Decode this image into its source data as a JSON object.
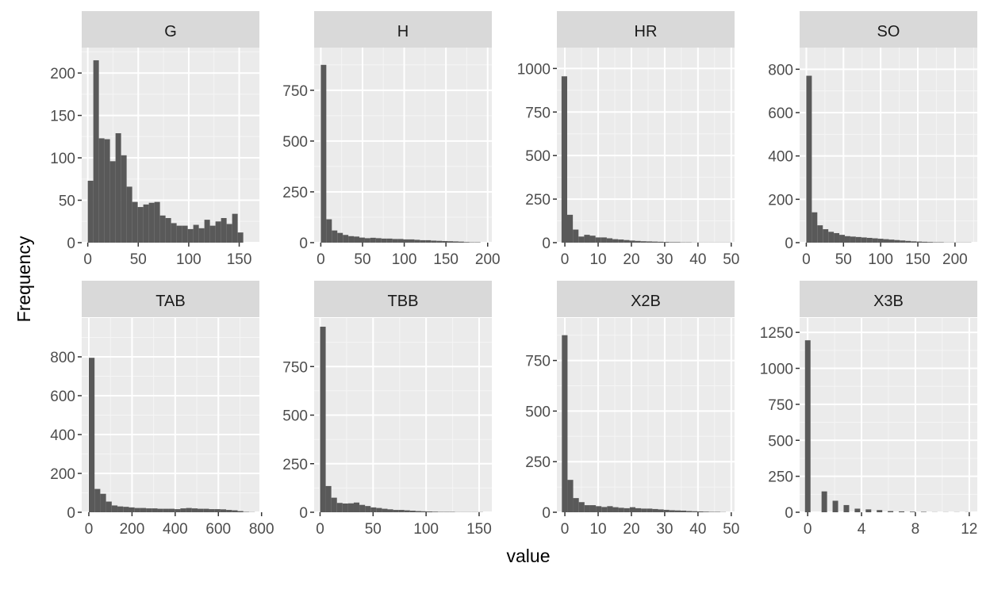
{
  "colors": {
    "panel_bg": "#ebebeb",
    "grid_major": "#ffffff",
    "grid_minor": "#f5f5f5",
    "strip_bg": "#d9d9d9",
    "bar_fill": "#595959",
    "tick_color": "#333333"
  },
  "chart_data": {
    "type": "bar",
    "layout": "facet-grid 2 rows x 4 columns, free scales",
    "xlabel": "value",
    "ylabel": "Frequency",
    "grid": true,
    "legend": "none",
    "panels": [
      {
        "name": "G",
        "xlim": [
          -6,
          170
        ],
        "ylim": [
          0,
          230
        ],
        "xticks": [
          0,
          50,
          100,
          150
        ],
        "yticks": [
          0,
          50,
          100,
          150,
          200
        ],
        "x0": 0,
        "binwidth": 5.5,
        "values": [
          73,
          215,
          123,
          122,
          96,
          129,
          103,
          66,
          48,
          42,
          45,
          47,
          48,
          32,
          29,
          23,
          20,
          20,
          16,
          21,
          17,
          27,
          20,
          25,
          29,
          22,
          34,
          12
        ]
      },
      {
        "name": "H",
        "xlim": [
          -8,
          205
        ],
        "ylim": [
          0,
          960
        ],
        "xticks": [
          0,
          50,
          100,
          150,
          200
        ],
        "yticks": [
          0,
          250,
          500,
          750
        ],
        "x0": 0,
        "binwidth": 6.6,
        "values": [
          875,
          115,
          60,
          48,
          38,
          32,
          30,
          25,
          22,
          24,
          22,
          20,
          20,
          18,
          18,
          16,
          16,
          14,
          12,
          12,
          10,
          9,
          8,
          7,
          6,
          5,
          3,
          2,
          2
        ]
      },
      {
        "name": "HR",
        "xlim": [
          -2.4,
          51
        ],
        "ylim": [
          0,
          1120
        ],
        "xticks": [
          0,
          10,
          20,
          30,
          40,
          50
        ],
        "yticks": [
          0,
          250,
          500,
          750,
          1000
        ],
        "x0": -1,
        "binwidth": 1.7,
        "values": [
          955,
          160,
          75,
          35,
          45,
          40,
          30,
          30,
          25,
          20,
          18,
          15,
          12,
          10,
          8,
          7,
          6,
          5,
          4,
          3,
          3,
          2,
          2,
          1,
          1,
          1,
          1,
          1,
          1,
          1
        ]
      },
      {
        "name": "SO",
        "xlim": [
          -9,
          230
        ],
        "ylim": [
          0,
          900
        ],
        "xticks": [
          0,
          50,
          100,
          150,
          200
        ],
        "yticks": [
          0,
          200,
          400,
          600,
          800
        ],
        "x0": 0,
        "binwidth": 7.4,
        "values": [
          770,
          140,
          80,
          62,
          50,
          44,
          36,
          30,
          28,
          26,
          24,
          22,
          20,
          18,
          16,
          14,
          12,
          10,
          8,
          6,
          5,
          4,
          3,
          2,
          2,
          1,
          1,
          1,
          1,
          1
        ]
      },
      {
        "name": "TAB",
        "xlim": [
          -33,
          790
        ],
        "ylim": [
          0,
          1000
        ],
        "xticks": [
          0,
          200,
          400,
          600,
          800
        ],
        "yticks": [
          0,
          200,
          400,
          600,
          800
        ],
        "x0": 0,
        "binwidth": 26.5,
        "values": [
          795,
          120,
          95,
          55,
          35,
          30,
          28,
          25,
          22,
          22,
          20,
          20,
          18,
          18,
          18,
          16,
          20,
          22,
          20,
          18,
          18,
          16,
          16,
          15,
          12,
          10,
          6,
          2,
          1
        ]
      },
      {
        "name": "TBB",
        "xlim": [
          -5.6,
          162
        ],
        "ylim": [
          0,
          1000
        ],
        "xticks": [
          0,
          50,
          100,
          150
        ],
        "yticks": [
          0,
          250,
          500,
          750
        ],
        "x0": 0,
        "binwidth": 5.3,
        "values": [
          955,
          135,
          75,
          48,
          45,
          46,
          50,
          38,
          32,
          25,
          22,
          18,
          15,
          12,
          12,
          10,
          8,
          6,
          5,
          4,
          3,
          2,
          2,
          2,
          1,
          1,
          1,
          1,
          1
        ]
      },
      {
        "name": "X2B",
        "xlim": [
          -2.4,
          51
        ],
        "ylim": [
          0,
          960
        ],
        "xticks": [
          0,
          10,
          20,
          30,
          40,
          50
        ],
        "yticks": [
          0,
          250,
          500,
          750
        ],
        "x0": -0.9,
        "binwidth": 1.7,
        "values": [
          875,
          160,
          70,
          50,
          35,
          35,
          30,
          26,
          30,
          25,
          22,
          20,
          25,
          20,
          18,
          18,
          16,
          14,
          12,
          10,
          9,
          8,
          6,
          5,
          4,
          3,
          2,
          2,
          1
        ]
      },
      {
        "name": "X3B",
        "xlim": [
          -0.6,
          12.6
        ],
        "ylim": [
          0,
          1350
        ],
        "xticks": [
          0,
          4,
          8,
          12
        ],
        "yticks": [
          0,
          250,
          500,
          750,
          1000,
          1250
        ],
        "x0": -0.2,
        "binwidth": 0.41,
        "values": [
          1195,
          0,
          0,
          145,
          0,
          80,
          0,
          50,
          0,
          25,
          0,
          20,
          0,
          15,
          0,
          8,
          0,
          6,
          0,
          4,
          0,
          3,
          0,
          1,
          0,
          1,
          0,
          1,
          0,
          1
        ]
      }
    ]
  }
}
